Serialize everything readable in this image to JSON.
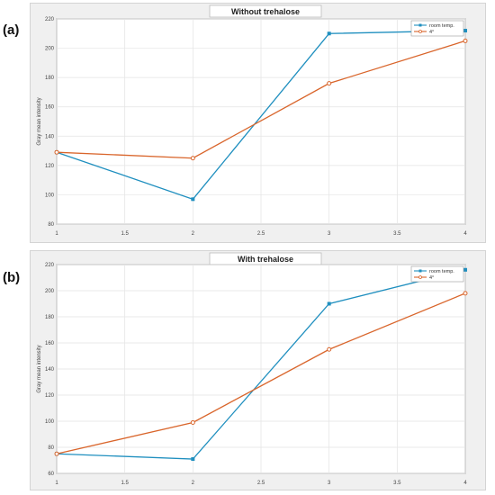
{
  "panels": [
    {
      "label": "(a)"
    },
    {
      "label": "(b)"
    }
  ],
  "chart_data": [
    {
      "type": "line",
      "title": "Without trehalose",
      "xlabel": "",
      "ylabel": "Gray mean intensity",
      "x": [
        1,
        2,
        3,
        4
      ],
      "xlim": [
        1,
        4
      ],
      "ylim": [
        80,
        220
      ],
      "xticks": [
        1,
        1.5,
        2,
        2.5,
        3,
        3.5,
        4
      ],
      "yticks": [
        80,
        100,
        120,
        140,
        160,
        180,
        200,
        220
      ],
      "grid": true,
      "legend_position": "top-right",
      "series": [
        {
          "name": "room temp.",
          "color": "#1f8fbf",
          "marker": "square",
          "values": [
            129,
            97,
            210,
            212
          ]
        },
        {
          "name": "4°",
          "color": "#d9652b",
          "marker": "circle",
          "values": [
            129,
            125,
            176,
            205
          ]
        }
      ]
    },
    {
      "type": "line",
      "title": "With trehalose",
      "xlabel": "",
      "ylabel": "Gray mean intensity",
      "x": [
        1,
        2,
        3,
        4
      ],
      "xlim": [
        1,
        4
      ],
      "ylim": [
        60,
        220
      ],
      "xticks": [
        1,
        1.5,
        2,
        2.5,
        3,
        3.5,
        4
      ],
      "yticks": [
        60,
        80,
        100,
        120,
        140,
        160,
        180,
        200,
        220
      ],
      "grid": true,
      "legend_position": "top-right",
      "series": [
        {
          "name": "room temp.",
          "color": "#1f8fbf",
          "marker": "square",
          "values": [
            75,
            71,
            190,
            216
          ]
        },
        {
          "name": "4°",
          "color": "#d9652b",
          "marker": "circle",
          "values": [
            75,
            99,
            155,
            198
          ]
        }
      ]
    }
  ]
}
